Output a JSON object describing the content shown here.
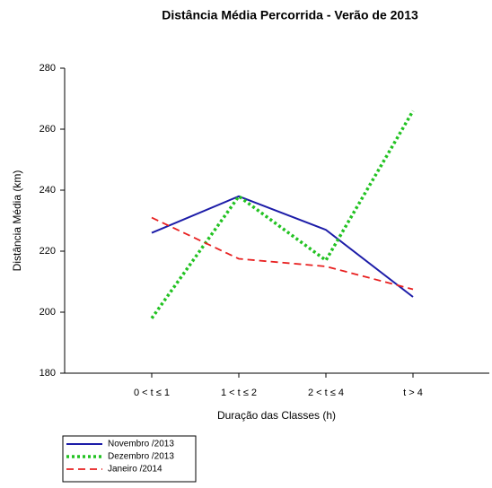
{
  "chart_data": {
    "type": "line",
    "title": "Distância Média Percorrida - Verão de 2013",
    "x_label": "Duração das Classes (h)",
    "y_label": "Distância Média (km)",
    "categories": [
      "0 < t ≤ 1",
      "1 < t ≤ 2",
      "2 < t ≤ 4",
      "t > 4"
    ],
    "series": [
      {
        "name": "Novembro /2013",
        "color": "#1c1ca8",
        "style": "solid",
        "values": [
          226,
          238,
          227,
          205
        ]
      },
      {
        "name": "Dezembro /2013",
        "color": "#22c222",
        "style": "dotted",
        "values": [
          198,
          238,
          217,
          266
        ]
      },
      {
        "name": "Janeiro /2014",
        "color": "#e82020",
        "style": "dashed",
        "values": [
          231,
          217.5,
          215,
          207.5
        ]
      }
    ],
    "ylim": [
      180,
      280
    ],
    "yticks": [
      180,
      200,
      220,
      240,
      260,
      280
    ],
    "grid": false,
    "legend": "bottom-left"
  }
}
